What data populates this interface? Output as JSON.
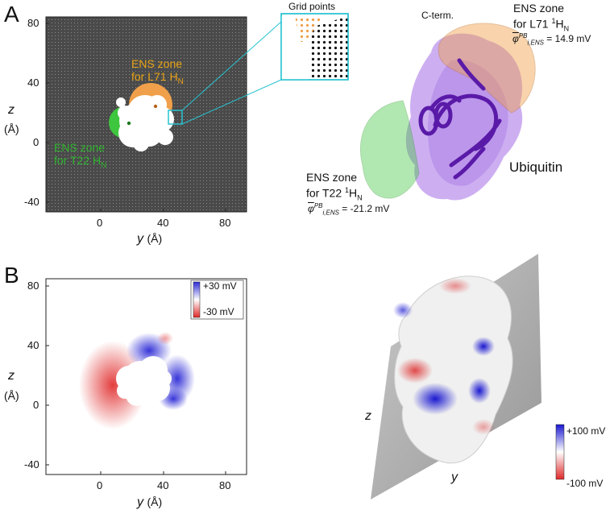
{
  "colors": {
    "grid_bg": "#4a4a4a",
    "ens_orange": "#f0a04a",
    "ens_green": "#3ec63e",
    "label_orange": "#e8a316",
    "label_green": "#2fb52f",
    "callout_cyan": "#27c3d1",
    "protein_purple": "#b78ee8",
    "ribbon_purple": "#5a1aa8",
    "pos_blue": "#2d2bd6",
    "neg_red": "#e02828"
  },
  "panelA": {
    "letter": "A",
    "x_ticks": [
      "0",
      "40",
      "80"
    ],
    "y_ticks": [
      "80",
      "40",
      "0",
      "-40"
    ],
    "x_axis": {
      "sym": "y",
      "unit": "(Å)"
    },
    "y_axis": {
      "sym": "z",
      "unit": "(Å)"
    },
    "ens_l71_line1": "ENS zone",
    "ens_l71_line2": "for L71 H",
    "ens_l71_sub": "N",
    "ens_t22_line1": "ENS zone",
    "ens_t22_line2": "for T22 H",
    "ens_t22_sub": "N",
    "grid_points_title": "Grid points",
    "structure": {
      "cterm": "C-term.",
      "l71_line1": "ENS zone",
      "l71_line2": "for L71 ",
      "l71_sup": "1",
      "l71_h": "H",
      "l71_sub": "N",
      "l71_value": "= 14.9 mV",
      "t22_line1": "ENS zone",
      "t22_line2": "for T22 ",
      "t22_sup": "1",
      "t22_h": "H",
      "t22_sub": "N",
      "t22_value": "= -21.2 mV",
      "phi_symbol": "φ",
      "phi_sup": "PB",
      "phi_sub": "i,ENS",
      "protein_name": "Ubiquitin"
    }
  },
  "panelB": {
    "letter": "B",
    "x_ticks": [
      "0",
      "40",
      "80"
    ],
    "y_ticks": [
      "80",
      "40",
      "0",
      "-40"
    ],
    "x_axis": {
      "sym": "y",
      "unit": "(Å)"
    },
    "y_axis": {
      "sym": "z",
      "unit": "(Å)"
    },
    "legend_pos": "+30 mV",
    "legend_neg": "-30 mV",
    "surface_legend_pos": "+100 mV",
    "surface_legend_neg": "-100 mV",
    "plane_z": "z",
    "plane_y": "y"
  }
}
